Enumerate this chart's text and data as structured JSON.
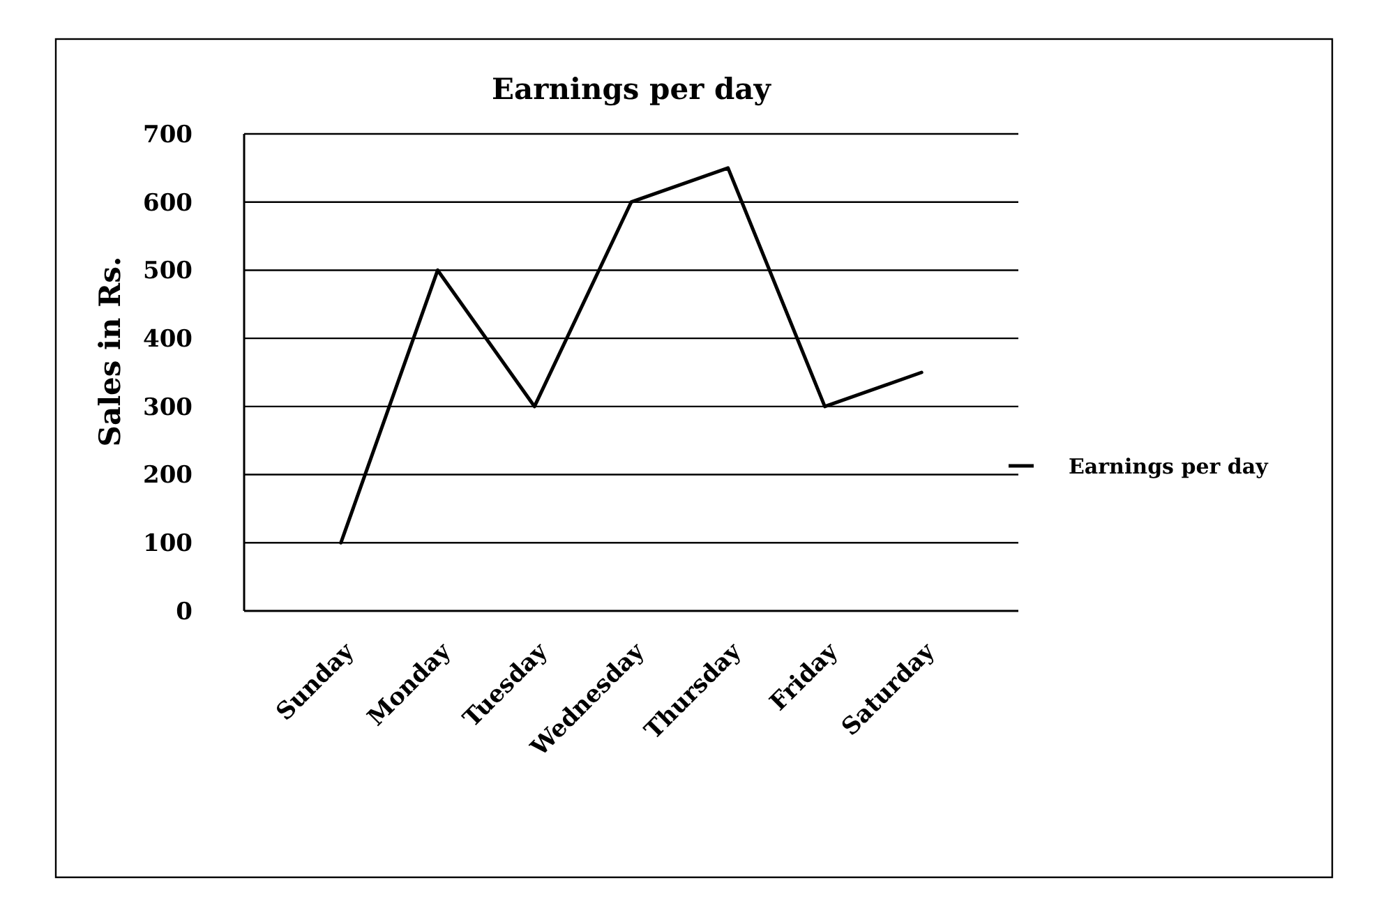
{
  "chart_data": {
    "type": "line",
    "title": "Earnings per day",
    "ylabel": "Sales in Rs.",
    "categories": [
      "Sunday",
      "Monday",
      "Tuesday",
      "Wednesday",
      "Thursday",
      "Friday",
      "Saturday"
    ],
    "series": [
      {
        "name": "Earnings per day",
        "color": "#000000",
        "values": [
          100,
          500,
          300,
          600,
          650,
          300,
          350
        ]
      }
    ],
    "ylim": [
      0,
      700
    ],
    "yticks": [
      0,
      100,
      200,
      300,
      400,
      500,
      600,
      700
    ],
    "grid": "y",
    "legend": "right",
    "marker": "none",
    "line_style": "solid"
  }
}
